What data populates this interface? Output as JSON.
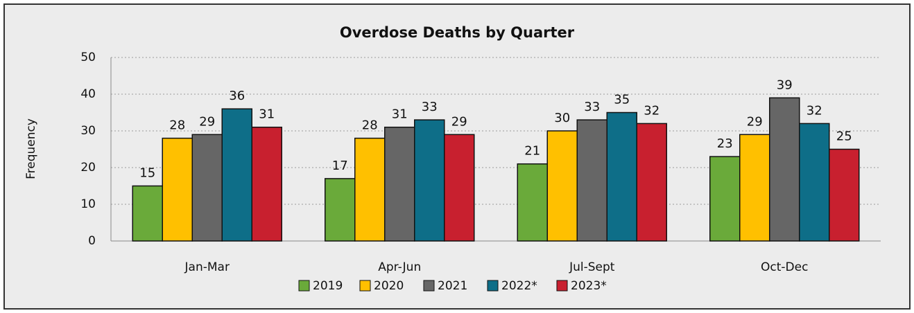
{
  "chart_data": {
    "type": "bar",
    "title": "Overdose Deaths by Quarter",
    "y_label": "Frequency",
    "categories": [
      "Jan-Mar",
      "Apr-Jun",
      "Jul-Sept",
      "Oct-Dec"
    ],
    "series": [
      {
        "name": "2019",
        "color": "#6aaa3a",
        "values": [
          15,
          17,
          21,
          23
        ]
      },
      {
        "name": "2020",
        "color": "#ffc000",
        "values": [
          28,
          28,
          30,
          29
        ]
      },
      {
        "name": "2021",
        "color": "#666666",
        "values": [
          29,
          31,
          33,
          39
        ]
      },
      {
        "name": "2022*",
        "color": "#0e6e88",
        "values": [
          36,
          33,
          35,
          32
        ]
      },
      {
        "name": "2023*",
        "color": "#c8202f",
        "values": [
          31,
          29,
          32,
          25
        ]
      }
    ],
    "ylim": [
      0,
      50
    ],
    "yticks": [
      0,
      10,
      20,
      30,
      40,
      50
    ],
    "grid": true,
    "legend": "bottom"
  }
}
